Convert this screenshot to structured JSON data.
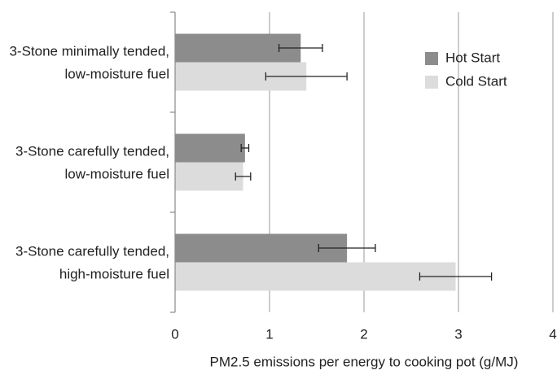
{
  "chart_data": {
    "type": "hbar",
    "categories": [
      [
        "3-Stone minimally tended,",
        "low-moisture fuel"
      ],
      [
        "3-Stone carefully tended,",
        "low-moisture fuel"
      ],
      [
        "3-Stone carefully tended,",
        "high-moisture fuel"
      ]
    ],
    "series": [
      {
        "name": "Hot Start",
        "color": "#8c8c8d",
        "values": [
          1.33,
          0.74,
          1.82
        ],
        "errors": [
          0.23,
          0.04,
          0.3
        ]
      },
      {
        "name": "Cold Start",
        "color": "#dcdcdc",
        "values": [
          1.39,
          0.72,
          2.97
        ],
        "errors": [
          0.43,
          0.08,
          0.38
        ]
      }
    ],
    "xlabel": "PM2.5 emissions per energy to cooking pot (g/MJ)",
    "xlim": [
      0,
      4
    ],
    "xticks": [
      0,
      1,
      2,
      3,
      4
    ],
    "grid": true,
    "legend": "upper right"
  }
}
